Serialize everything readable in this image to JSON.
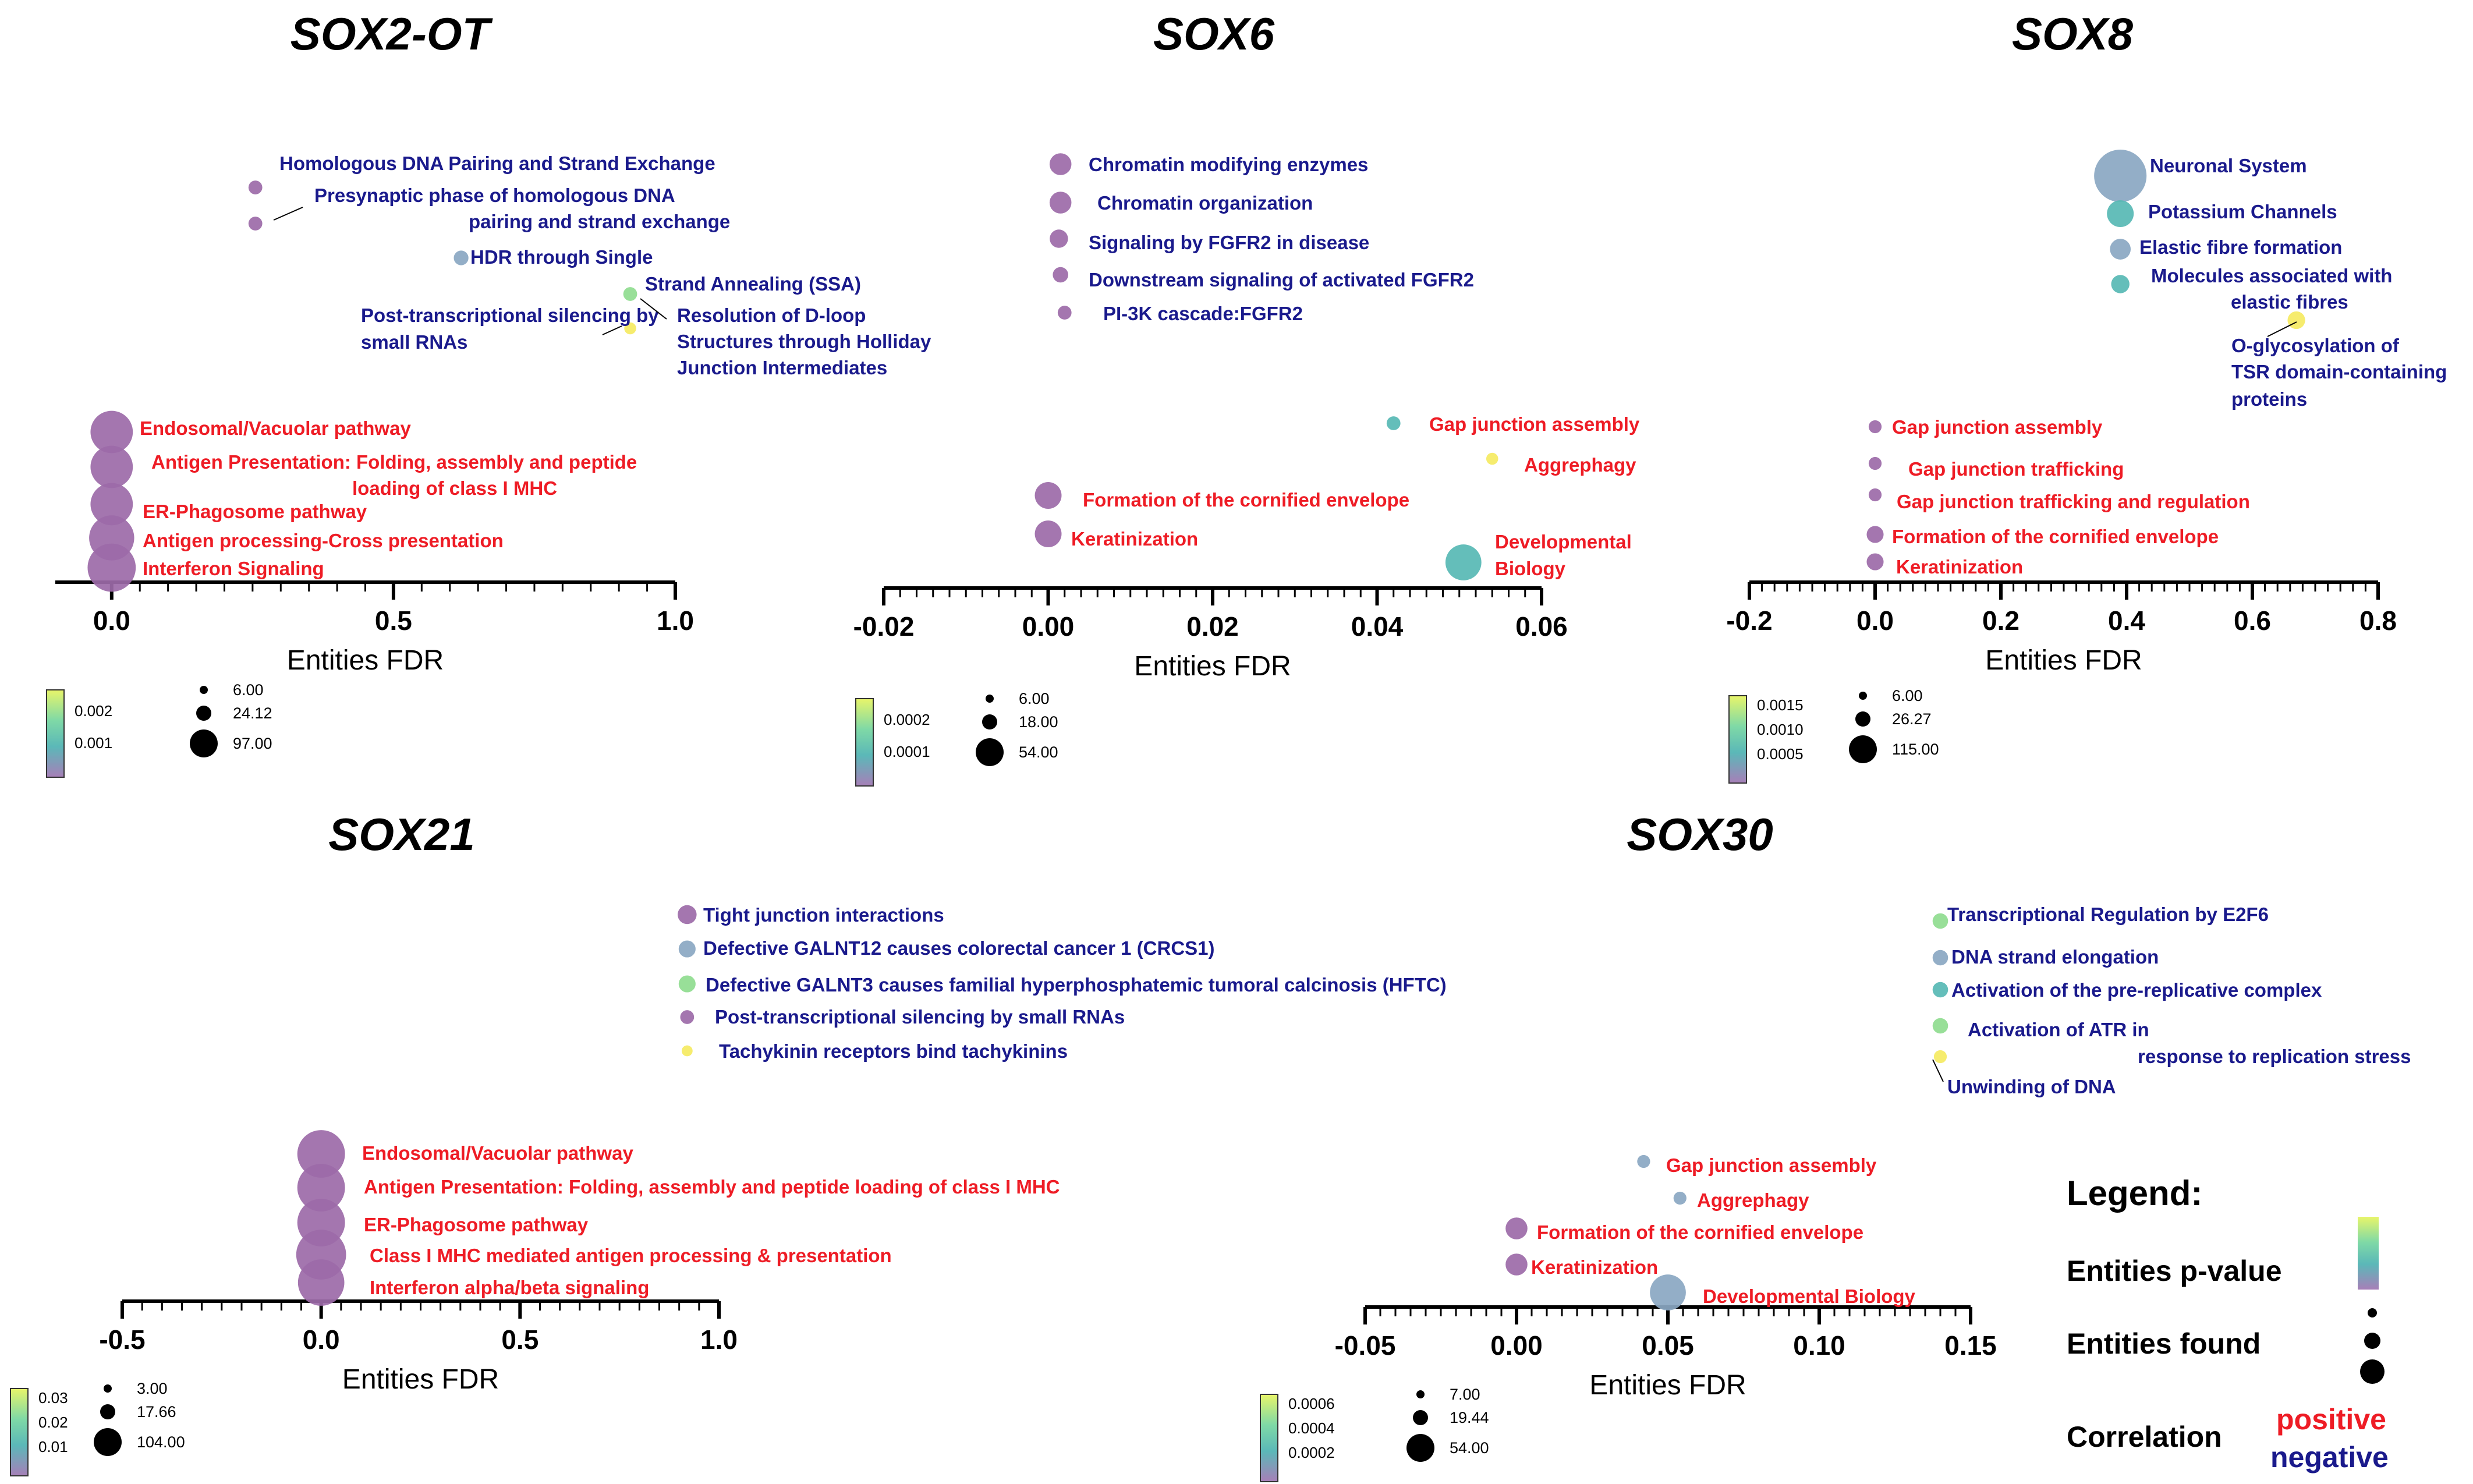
{
  "chart_data": [
    {
      "type": "scatter",
      "title": "SOX2-OT",
      "xlabel": "Entities FDR",
      "xticks": [
        "0.0",
        "0.5",
        "1.0"
      ],
      "xlim": [
        -0.1,
        1.0
      ],
      "negative": [
        {
          "label": "Homologous DNA Pairing and Strand Exchange",
          "x": 0.255,
          "size": 8
        },
        {
          "label": "Presynaptic phase of homologous DNA pairing and strand exchange",
          "x": 0.255,
          "size": 8
        },
        {
          "label": "HDR through Single Strand Annealing (SSA)",
          "x": 0.62,
          "size": 9
        },
        {
          "label": "Post-transcriptional silencing by small RNAs",
          "x": 0.92,
          "size": 6
        },
        {
          "label": "Resolution of D-loop Structures through Holliday Junction Intermediates",
          "x": 0.92,
          "size": 8
        }
      ],
      "positive": [
        {
          "label": "Endosomal/Vacuolar pathway",
          "x": 0.0,
          "size": 75
        },
        {
          "label": "Antigen Presentation: Folding, assembly and peptide loading of class I MHC",
          "x": 0.0,
          "size": 75
        },
        {
          "label": "ER-Phagosome pathway",
          "x": 0.0,
          "size": 75
        },
        {
          "label": "Antigen processing-Cross presentation",
          "x": 0.0,
          "size": 85
        },
        {
          "label": "Interferon Signaling",
          "x": 0.0,
          "size": 97
        }
      ],
      "colorbar": {
        "ticks": [
          "0.002",
          "0.001"
        ]
      },
      "sizes": [
        "6.00",
        "24.12",
        "97.00"
      ]
    },
    {
      "type": "scatter",
      "title": "SOX6",
      "xlabel": "Entities FDR",
      "xticks": [
        "-0.02",
        "0.00",
        "0.02",
        "0.04",
        "0.06"
      ],
      "xlim": [
        -0.02,
        0.06
      ],
      "negative": [
        {
          "label": "Chromatin modifying enzymes",
          "x": 0.0015,
          "size": 20
        },
        {
          "label": "Chromatin organization",
          "x": 0.0015,
          "size": 20
        },
        {
          "label": "Signaling by FGFR2 in disease",
          "x": 0.0013,
          "size": 14
        },
        {
          "label": "Downstream signaling of activated FGFR2",
          "x": 0.0015,
          "size": 10
        },
        {
          "label": "PI-3K cascade:FGFR2",
          "x": 0.002,
          "size": 8
        }
      ],
      "positive": [
        {
          "label": "Gap junction assembly",
          "x": 0.042,
          "size": 8
        },
        {
          "label": "Aggrephagy",
          "x": 0.054,
          "size": 6
        },
        {
          "label": "Formation of the cornified envelope",
          "x": 0.0,
          "size": 30
        },
        {
          "label": "Keratinization",
          "x": 0.0,
          "size": 30
        },
        {
          "label": "Developmental Biology",
          "x": 0.0505,
          "size": 54
        }
      ],
      "colorbar": {
        "ticks": [
          "0.0002",
          "0.0001"
        ]
      },
      "sizes": [
        "6.00",
        "18.00",
        "54.00"
      ]
    },
    {
      "type": "scatter",
      "title": "SOX8",
      "xlabel": "Entities FDR",
      "xticks": [
        "-0.2",
        "0.0",
        "0.2",
        "0.4",
        "0.6",
        "0.8"
      ],
      "xlim": [
        -0.2,
        0.8
      ],
      "negative": [
        {
          "label": "Neuronal System",
          "x": 0.39,
          "size": 115
        },
        {
          "label": "Potassium Channels",
          "x": 0.39,
          "size": 30
        },
        {
          "label": "Elastic fibre formation",
          "x": 0.39,
          "size": 18
        },
        {
          "label": "Molecules associated with elastic fibres",
          "x": 0.39,
          "size": 14
        },
        {
          "label": "O-glycosylation of TSR domain-containing proteins",
          "x": 0.67,
          "size": 13
        }
      ],
      "positive": [
        {
          "label": "Gap junction assembly",
          "x": 0.0,
          "size": 7
        },
        {
          "label": "Gap junction trafficking",
          "x": 0.0,
          "size": 7
        },
        {
          "label": "Gap junction trafficking and regulation",
          "x": 0.0,
          "size": 7
        },
        {
          "label": "Formation of the cornified envelope",
          "x": 0.0,
          "size": 12
        },
        {
          "label": "Keratinization",
          "x": 0.0,
          "size": 12
        }
      ],
      "colorbar": {
        "ticks": [
          "0.0015",
          "0.0010",
          "0.0005"
        ]
      },
      "sizes": [
        "6.00",
        "26.27",
        "115.00"
      ]
    },
    {
      "type": "scatter",
      "title": "SOX21",
      "xlabel": "Entities FDR",
      "xticks": [
        "-0.5",
        "0.0",
        "0.5",
        "1.0"
      ],
      "xlim": [
        -0.5,
        1.0
      ],
      "negative": [
        {
          "label": "Tight junction interactions",
          "x": 0.92,
          "size": 15
        },
        {
          "label": "Defective GALNT12 causes colorectal cancer 1 (CRCS1)",
          "x": 0.92,
          "size": 12
        },
        {
          "label": "Defective GALNT3 causes familial hyperphosphatemic tumoral calcinosis (HFTC)",
          "x": 0.92,
          "size": 12
        },
        {
          "label": "Post-transcriptional silencing by small RNAs",
          "x": 0.92,
          "size": 8
        },
        {
          "label": "Tachykinin receptors bind tachykinins",
          "x": 0.92,
          "size": 5
        }
      ],
      "positive": [
        {
          "label": "Endosomal/Vacuolar pathway",
          "x": 0.0,
          "size": 95
        },
        {
          "label": "Antigen Presentation: Folding, assembly and peptide loading of class I MHC",
          "x": 0.0,
          "size": 95
        },
        {
          "label": "ER-Phagosome pathway",
          "x": 0.0,
          "size": 95
        },
        {
          "label": "Class I MHC mediated antigen processing & presentation",
          "x": 0.0,
          "size": 104
        },
        {
          "label": "Interferon alpha/beta signaling",
          "x": 0.0,
          "size": 90
        }
      ],
      "colorbar": {
        "ticks": [
          "0.03",
          "0.02",
          "0.01"
        ]
      },
      "sizes": [
        "3.00",
        "17.66",
        "104.00"
      ]
    },
    {
      "type": "scatter",
      "title": "SOX30",
      "xlabel": "Entities FDR",
      "xticks": [
        "-0.05",
        "0.00",
        "0.05",
        "0.10",
        "0.15"
      ],
      "xlim": [
        -0.05,
        0.15
      ],
      "negative": [
        {
          "label": "Transcriptional Regulation by E2F6",
          "x": 0.14,
          "size": 10
        },
        {
          "label": "DNA strand elongation",
          "x": 0.14,
          "size": 10
        },
        {
          "label": "Activation of the pre-replicative complex",
          "x": 0.14,
          "size": 10
        },
        {
          "label": "Activation of ATR in response to replication stress",
          "x": 0.14,
          "size": 10
        },
        {
          "label": "Unwinding of DNA",
          "x": 0.14,
          "size": 7
        }
      ],
      "positive": [
        {
          "label": "Gap junction assembly",
          "x": 0.042,
          "size": 7
        },
        {
          "label": "Aggrephagy",
          "x": 0.054,
          "size": 7
        },
        {
          "label": "Formation of the cornified envelope",
          "x": 0.0,
          "size": 20
        },
        {
          "label": "Keratinization",
          "x": 0.0,
          "size": 20
        },
        {
          "label": "Developmental Biology",
          "x": 0.05,
          "size": 54
        }
      ],
      "colorbar": {
        "ticks": [
          "0.0006",
          "0.0004",
          "0.0002"
        ]
      },
      "sizes": [
        "7.00",
        "19.44",
        "54.00"
      ]
    }
  ],
  "legend": {
    "title": "Legend:",
    "pvalue": "Entities p-value",
    "found": "Entities found",
    "correlation": "Correlation",
    "positive": "positive",
    "negative": "negative"
  },
  "colors": {
    "positive": "#ee1c25",
    "negative": "#1a1a8c",
    "purple": "#9c6aa8",
    "steel": "#8aa7c2",
    "teal": "#57b9b4",
    "green": "#8fdc8f",
    "yellow": "#f5ea62"
  }
}
